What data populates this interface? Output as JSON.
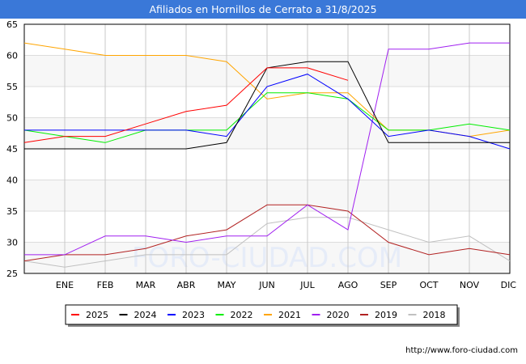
{
  "chart_data": {
    "type": "line",
    "title": "Afiliados en Hornillos de Cerrato a 31/8/2025",
    "categories": [
      "",
      "ENE",
      "FEB",
      "MAR",
      "ABR",
      "MAY",
      "JUN",
      "JUL",
      "AGO",
      "SEP",
      "OCT",
      "NOV",
      "DIC"
    ],
    "ylim": [
      25,
      65
    ],
    "yticks": [
      25,
      30,
      35,
      40,
      45,
      50,
      55,
      60,
      65
    ],
    "grid": true,
    "legend_position": "bottom",
    "series": [
      {
        "name": "2025",
        "color": "#ff0000",
        "values": [
          46,
          47,
          47,
          49,
          51,
          52,
          58,
          58,
          56,
          null,
          null,
          null,
          null
        ]
      },
      {
        "name": "2024",
        "color": "#000000",
        "values": [
          45,
          45,
          45,
          45,
          45,
          46,
          58,
          59,
          59,
          46,
          46,
          46,
          46
        ]
      },
      {
        "name": "2023",
        "color": "#0000ff",
        "values": [
          48,
          48,
          48,
          48,
          48,
          47,
          55,
          57,
          53,
          47,
          48,
          47,
          45
        ]
      },
      {
        "name": "2022",
        "color": "#00ee00",
        "values": [
          48,
          47,
          46,
          48,
          48,
          48,
          54,
          54,
          53,
          48,
          48,
          49,
          48
        ]
      },
      {
        "name": "2021",
        "color": "#ffa500",
        "values": [
          62,
          61,
          60,
          60,
          60,
          59,
          53,
          54,
          54,
          48,
          48,
          47,
          48
        ]
      },
      {
        "name": "2020",
        "color": "#a020f0",
        "values": [
          28,
          28,
          31,
          31,
          30,
          31,
          31,
          36,
          32,
          61,
          61,
          62,
          62
        ]
      },
      {
        "name": "2019",
        "color": "#b22222",
        "values": [
          27,
          28,
          28,
          29,
          31,
          32,
          36,
          36,
          35,
          30,
          28,
          29,
          28
        ]
      },
      {
        "name": "2018",
        "color": "#c0c0c0",
        "values": [
          27,
          26,
          27,
          28,
          28,
          28,
          33,
          34,
          34,
          32,
          30,
          31,
          27
        ]
      }
    ]
  },
  "watermark": "FORO-CIUDAD.COM",
  "url": "http://www.foro-ciudad.com"
}
